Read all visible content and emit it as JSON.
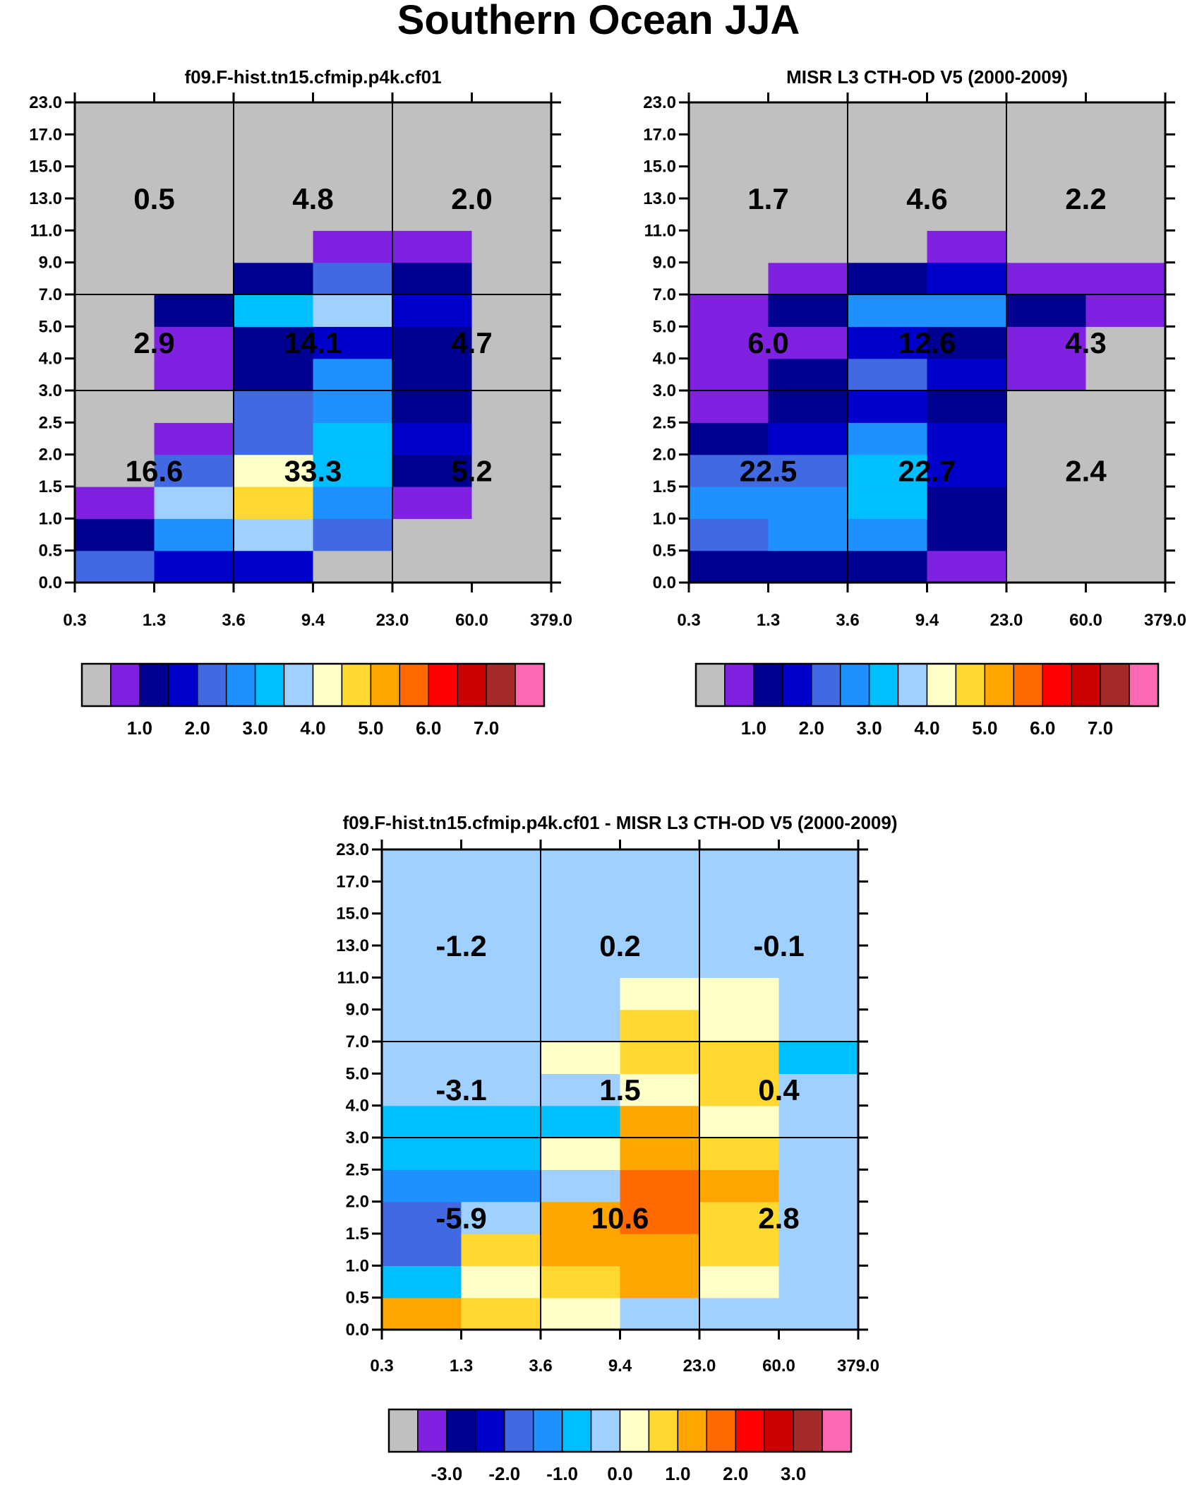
{
  "figure_title": "Southern Ocean JJA",
  "colors": {
    "background": "#ffffff",
    "gray": "#c0c0c0",
    "grid": "#000000"
  },
  "chart_data": [
    {
      "type": "heatmap",
      "title": "f09.F-hist.tn15.cfmip.p4k.cf01",
      "x_edges": [
        "0.3",
        "1.3",
        "3.6",
        "9.4",
        "23.0",
        "60.0",
        "379.0"
      ],
      "y_edges": [
        "0.0",
        "0.5",
        "1.0",
        "1.5",
        "2.0",
        "2.5",
        "3.0",
        "4.0",
        "5.0",
        "7.0",
        "9.0",
        "11.0",
        "13.0",
        "15.0",
        "17.0",
        "23.0"
      ],
      "grid": {
        "x_lines": [
          2,
          4
        ],
        "y_lines": [
          6,
          9
        ]
      },
      "cell_colors": [
        [
          "#4169e1",
          "#0000cd",
          "#0000cd",
          "#c0c0c0",
          "#c0c0c0",
          "#c0c0c0"
        ],
        [
          "#000090",
          "#1e90ff",
          "#a0d0ff",
          "#4169e1",
          "#c0c0c0",
          "#c0c0c0"
        ],
        [
          "#8020e0",
          "#a0d0ff",
          "#ffd830",
          "#1e90ff",
          "#8020e0",
          "#c0c0c0"
        ],
        [
          "#c0c0c0",
          "#4169e1",
          "#ffffc8",
          "#00bfff",
          "#000090",
          "#c0c0c0"
        ],
        [
          "#c0c0c0",
          "#8020e0",
          "#4169e1",
          "#00bfff",
          "#0000cd",
          "#c0c0c0"
        ],
        [
          "#c0c0c0",
          "#c0c0c0",
          "#4169e1",
          "#1e90ff",
          "#000090",
          "#c0c0c0"
        ],
        [
          "#c0c0c0",
          "#8020e0",
          "#000090",
          "#1e90ff",
          "#000090",
          "#c0c0c0"
        ],
        [
          "#c0c0c0",
          "#8020e0",
          "#000090",
          "#0000cd",
          "#000090",
          "#c0c0c0"
        ],
        [
          "#c0c0c0",
          "#000090",
          "#00bfff",
          "#a0d0ff",
          "#0000cd",
          "#c0c0c0"
        ],
        [
          "#c0c0c0",
          "#c0c0c0",
          "#000090",
          "#4169e1",
          "#000090",
          "#c0c0c0"
        ],
        [
          "#c0c0c0",
          "#c0c0c0",
          "#c0c0c0",
          "#8020e0",
          "#8020e0",
          "#c0c0c0"
        ],
        [
          "#c0c0c0",
          "#c0c0c0",
          "#c0c0c0",
          "#c0c0c0",
          "#c0c0c0",
          "#c0c0c0"
        ],
        [
          "#c0c0c0",
          "#c0c0c0",
          "#c0c0c0",
          "#c0c0c0",
          "#c0c0c0",
          "#c0c0c0"
        ],
        [
          "#c0c0c0",
          "#c0c0c0",
          "#c0c0c0",
          "#c0c0c0",
          "#c0c0c0",
          "#c0c0c0"
        ],
        [
          "#c0c0c0",
          "#c0c0c0",
          "#c0c0c0",
          "#c0c0c0",
          "#c0c0c0",
          "#c0c0c0"
        ]
      ],
      "summary_values": {
        "rows_top_to_bottom": [
          [
            "0.5",
            "4.8",
            "2.0"
          ],
          [
            "2.9",
            "14.1",
            "4.7"
          ],
          [
            "16.6",
            "33.3",
            "5.2"
          ]
        ]
      },
      "colorbar": {
        "colors": [
          "#c0c0c0",
          "#8020e0",
          "#000090",
          "#0000cd",
          "#4169e1",
          "#1e90ff",
          "#00bfff",
          "#a0d0ff",
          "#ffffc8",
          "#ffd830",
          "#ffa500",
          "#ff6a00",
          "#ff0000",
          "#cc0000",
          "#a52a2a",
          "#ff69b4"
        ],
        "labels": [
          "1.0",
          "2.0",
          "3.0",
          "4.0",
          "5.0",
          "6.0",
          "7.0"
        ],
        "label_start_boundary": 2
      }
    },
    {
      "type": "heatmap",
      "title": "MISR L3 CTH-OD V5 (2000-2009)",
      "x_edges": [
        "0.3",
        "1.3",
        "3.6",
        "9.4",
        "23.0",
        "60.0",
        "379.0"
      ],
      "y_edges": [
        "0.0",
        "0.5",
        "1.0",
        "1.5",
        "2.0",
        "2.5",
        "3.0",
        "4.0",
        "5.0",
        "7.0",
        "9.0",
        "11.0",
        "13.0",
        "15.0",
        "17.0",
        "23.0"
      ],
      "grid": {
        "x_lines": [
          2,
          4
        ],
        "y_lines": [
          6,
          9
        ]
      },
      "cell_colors": [
        [
          "#000090",
          "#000090",
          "#000090",
          "#8020e0",
          "#c0c0c0",
          "#c0c0c0"
        ],
        [
          "#4169e1",
          "#1e90ff",
          "#1e90ff",
          "#000090",
          "#c0c0c0",
          "#c0c0c0"
        ],
        [
          "#1e90ff",
          "#1e90ff",
          "#00bfff",
          "#000090",
          "#c0c0c0",
          "#c0c0c0"
        ],
        [
          "#4169e1",
          "#4169e1",
          "#00bfff",
          "#0000cd",
          "#c0c0c0",
          "#c0c0c0"
        ],
        [
          "#000090",
          "#0000cd",
          "#1e90ff",
          "#0000cd",
          "#c0c0c0",
          "#c0c0c0"
        ],
        [
          "#8020e0",
          "#000090",
          "#0000cd",
          "#000090",
          "#c0c0c0",
          "#c0c0c0"
        ],
        [
          "#8020e0",
          "#000090",
          "#4169e1",
          "#0000cd",
          "#8020e0",
          "#c0c0c0"
        ],
        [
          "#8020e0",
          "#8020e0",
          "#0000cd",
          "#000090",
          "#8020e0",
          "#c0c0c0"
        ],
        [
          "#8020e0",
          "#000090",
          "#1e90ff",
          "#1e90ff",
          "#000090",
          "#8020e0"
        ],
        [
          "#c0c0c0",
          "#8020e0",
          "#000090",
          "#0000cd",
          "#8020e0",
          "#8020e0"
        ],
        [
          "#c0c0c0",
          "#c0c0c0",
          "#c0c0c0",
          "#8020e0",
          "#c0c0c0",
          "#c0c0c0"
        ],
        [
          "#c0c0c0",
          "#c0c0c0",
          "#c0c0c0",
          "#c0c0c0",
          "#c0c0c0",
          "#c0c0c0"
        ],
        [
          "#c0c0c0",
          "#c0c0c0",
          "#c0c0c0",
          "#c0c0c0",
          "#c0c0c0",
          "#c0c0c0"
        ],
        [
          "#c0c0c0",
          "#c0c0c0",
          "#c0c0c0",
          "#c0c0c0",
          "#c0c0c0",
          "#c0c0c0"
        ],
        [
          "#c0c0c0",
          "#c0c0c0",
          "#c0c0c0",
          "#c0c0c0",
          "#c0c0c0",
          "#c0c0c0"
        ]
      ],
      "summary_values": {
        "rows_top_to_bottom": [
          [
            "1.7",
            "4.6",
            "2.2"
          ],
          [
            "6.0",
            "12.6",
            "4.3"
          ],
          [
            "22.5",
            "22.7",
            "2.4"
          ]
        ]
      },
      "colorbar": {
        "colors": [
          "#c0c0c0",
          "#8020e0",
          "#000090",
          "#0000cd",
          "#4169e1",
          "#1e90ff",
          "#00bfff",
          "#a0d0ff",
          "#ffffc8",
          "#ffd830",
          "#ffa500",
          "#ff6a00",
          "#ff0000",
          "#cc0000",
          "#a52a2a",
          "#ff69b4"
        ],
        "labels": [
          "1.0",
          "2.0",
          "3.0",
          "4.0",
          "5.0",
          "6.0",
          "7.0"
        ],
        "label_start_boundary": 2
      }
    },
    {
      "type": "heatmap",
      "title": "f09.F-hist.tn15.cfmip.p4k.cf01 - MISR L3 CTH-OD V5 (2000-2009)",
      "x_edges": [
        "0.3",
        "1.3",
        "3.6",
        "9.4",
        "23.0",
        "60.0",
        "379.0"
      ],
      "y_edges": [
        "0.0",
        "0.5",
        "1.0",
        "1.5",
        "2.0",
        "2.5",
        "3.0",
        "4.0",
        "5.0",
        "7.0",
        "9.0",
        "11.0",
        "13.0",
        "15.0",
        "17.0",
        "23.0"
      ],
      "grid": {
        "x_lines": [
          2,
          4
        ],
        "y_lines": [
          6,
          9
        ]
      },
      "cell_colors": [
        [
          "#ffa500",
          "#ffd830",
          "#ffffc8",
          "#a0d0ff",
          "#a0d0ff",
          "#a0d0ff"
        ],
        [
          "#00bfff",
          "#ffffc8",
          "#ffd830",
          "#ffa500",
          "#ffffc8",
          "#a0d0ff"
        ],
        [
          "#4169e1",
          "#ffd830",
          "#ffa500",
          "#ffa500",
          "#ffd830",
          "#a0d0ff"
        ],
        [
          "#4169e1",
          "#a0d0ff",
          "#ffa500",
          "#ff6a00",
          "#ffd830",
          "#a0d0ff"
        ],
        [
          "#1e90ff",
          "#1e90ff",
          "#a0d0ff",
          "#ff6a00",
          "#ffa500",
          "#a0d0ff"
        ],
        [
          "#00bfff",
          "#00bfff",
          "#ffffc8",
          "#ffa500",
          "#ffd830",
          "#a0d0ff"
        ],
        [
          "#00bfff",
          "#00bfff",
          "#00bfff",
          "#ffa500",
          "#ffffc8",
          "#a0d0ff"
        ],
        [
          "#a0d0ff",
          "#a0d0ff",
          "#a0d0ff",
          "#ffffc8",
          "#ffd830",
          "#a0d0ff"
        ],
        [
          "#a0d0ff",
          "#a0d0ff",
          "#ffffc8",
          "#ffd830",
          "#ffd830",
          "#00bfff"
        ],
        [
          "#a0d0ff",
          "#a0d0ff",
          "#a0d0ff",
          "#ffd830",
          "#ffffc8",
          "#a0d0ff"
        ],
        [
          "#a0d0ff",
          "#a0d0ff",
          "#a0d0ff",
          "#ffffc8",
          "#ffffc8",
          "#a0d0ff"
        ],
        [
          "#a0d0ff",
          "#a0d0ff",
          "#a0d0ff",
          "#a0d0ff",
          "#a0d0ff",
          "#a0d0ff"
        ],
        [
          "#a0d0ff",
          "#a0d0ff",
          "#a0d0ff",
          "#a0d0ff",
          "#a0d0ff",
          "#a0d0ff"
        ],
        [
          "#a0d0ff",
          "#a0d0ff",
          "#a0d0ff",
          "#a0d0ff",
          "#a0d0ff",
          "#a0d0ff"
        ],
        [
          "#a0d0ff",
          "#a0d0ff",
          "#a0d0ff",
          "#a0d0ff",
          "#a0d0ff",
          "#a0d0ff"
        ]
      ],
      "summary_values": {
        "rows_top_to_bottom": [
          [
            "-1.2",
            "0.2",
            "-0.1"
          ],
          [
            "-3.1",
            "1.5",
            "0.4"
          ],
          [
            "-5.9",
            "10.6",
            "2.8"
          ]
        ]
      },
      "colorbar": {
        "colors": [
          "#c0c0c0",
          "#8020e0",
          "#000090",
          "#0000cd",
          "#4169e1",
          "#1e90ff",
          "#00bfff",
          "#a0d0ff",
          "#ffffc8",
          "#ffd830",
          "#ffa500",
          "#ff6a00",
          "#ff0000",
          "#cc0000",
          "#a52a2a",
          "#ff69b4"
        ],
        "labels": [
          "-3.0",
          "-2.0",
          "-1.0",
          "0.0",
          "1.0",
          "2.0",
          "3.0"
        ],
        "label_start_boundary": 2
      }
    }
  ]
}
